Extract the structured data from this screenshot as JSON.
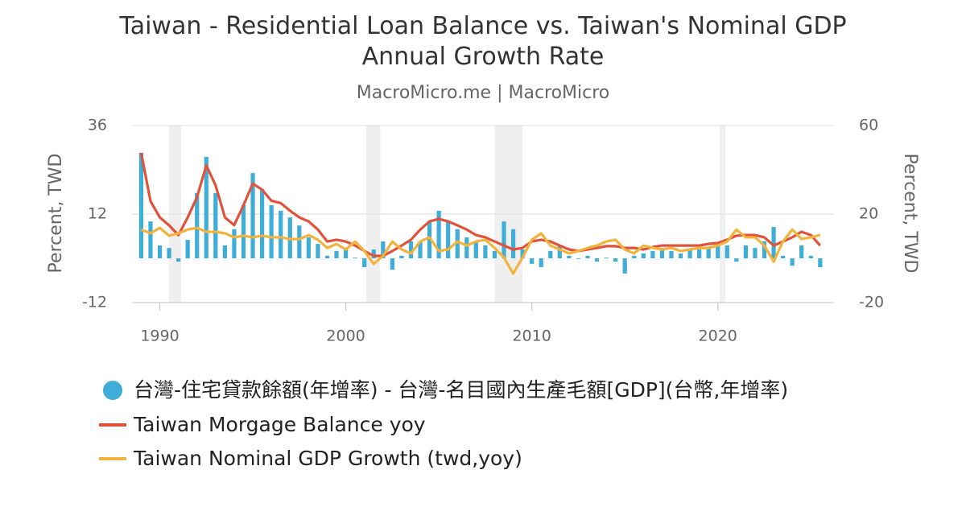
{
  "chart_data": {
    "type": "bar_line",
    "title": "Taiwan - Residential Loan Balance vs. Taiwan's Nominal GDP Annual Growth Rate",
    "subtitle": "MacroMicro.me | MacroMicro",
    "ylabel": "Percent, TWD",
    "y2label": "Percent, TWD",
    "xlim": [
      1988.55,
      2026.2
    ],
    "xticks": [
      1990,
      2000,
      2010,
      2020
    ],
    "ylim": [
      -12,
      36
    ],
    "yticks": [
      -12,
      12,
      36
    ],
    "y2lim": [
      -20,
      60
    ],
    "y2ticks": [
      -20,
      20,
      60
    ],
    "grid": true,
    "shaded_periods": [
      [
        1990.5,
        1991.15
      ],
      [
        2001.1,
        2001.85
      ],
      [
        2008.0,
        2009.5
      ],
      [
        2020.1,
        2020.4
      ]
    ],
    "x": [
      1989,
      1989.5,
      1990,
      1990.5,
      1991,
      1991.5,
      1992,
      1992.5,
      1993,
      1993.5,
      1994,
      1994.5,
      1995,
      1995.5,
      1996,
      1996.5,
      1997,
      1997.5,
      1998,
      1998.5,
      1999,
      1999.5,
      2000,
      2000.5,
      2001,
      2001.5,
      2002,
      2002.5,
      2003,
      2003.5,
      2004,
      2004.5,
      2005,
      2005.5,
      2006,
      2006.5,
      2007,
      2007.5,
      2008,
      2008.5,
      2009,
      2009.5,
      2010,
      2010.5,
      2011,
      2011.5,
      2012,
      2012.5,
      2013,
      2013.5,
      2014,
      2014.5,
      2015,
      2015.5,
      2016,
      2016.5,
      2017,
      2017.5,
      2018,
      2018.5,
      2019,
      2019.5,
      2020,
      2020.5,
      2021,
      2021.5,
      2022,
      2022.5,
      2023,
      2023.5,
      2024,
      2024.5,
      2025,
      2025.5
    ],
    "series": [
      {
        "name": "台灣-住宅貸款餘額(年增率) - 台灣-名目國內生產毛額[GDP](台幣,年增率)",
        "kind": "bar",
        "axis": "y",
        "color": "#3eadd8",
        "values": [
          28.6,
          10,
          3.5,
          2.8,
          -0.9,
          5,
          17.7,
          27.5,
          17.7,
          3.5,
          7.9,
          14.4,
          23.1,
          18.8,
          14.4,
          12.9,
          11.1,
          8.9,
          5.7,
          3.9,
          0.7,
          2,
          2.4,
          0.2,
          -2.4,
          2.4,
          4.6,
          -3.1,
          0.7,
          4.6,
          4.6,
          10,
          12.9,
          10,
          7.9,
          5.7,
          4.6,
          3.5,
          2,
          10,
          7.9,
          2.4,
          -1.5,
          -2.4,
          2,
          3.5,
          0.7,
          -0.2,
          0.7,
          -0.9,
          0.2,
          -0.9,
          -4.1,
          0.7,
          1.3,
          2,
          2.8,
          2,
          1.3,
          2.4,
          2.4,
          2.8,
          3.5,
          3.5,
          -0.9,
          3.5,
          2.8,
          4.6,
          8.5,
          0.7,
          -2,
          3.5,
          0.7,
          -2.4
        ]
      },
      {
        "name": "Taiwan Morgage Balance yoy",
        "kind": "line",
        "axis": "y2",
        "color": "#e0533a",
        "values": [
          47.6,
          25.8,
          18.5,
          14.9,
          10.5,
          18.5,
          27.6,
          42,
          33,
          18.5,
          15,
          24,
          33.8,
          31,
          26,
          25,
          21.5,
          18.5,
          16.7,
          13,
          7.6,
          8.4,
          7.6,
          5.8,
          3.3,
          1.1,
          1.1,
          3.3,
          5.8,
          8.4,
          13,
          16.7,
          17.8,
          16.7,
          14.9,
          13,
          10.5,
          9.5,
          7.6,
          5.8,
          4,
          4.7,
          7.6,
          8.4,
          7.6,
          5.8,
          4,
          3.3,
          4,
          4.7,
          5.5,
          5.5,
          4.7,
          4.7,
          4,
          5.1,
          5.8,
          5.8,
          5.8,
          5.8,
          5.8,
          6.5,
          6.9,
          8.4,
          10.2,
          10.5,
          10.5,
          9.5,
          5.8,
          7.6,
          9.5,
          12,
          10.5,
          5.8
        ]
      },
      {
        "name": "Taiwan Nominal GDP Growth (twd,yoy)",
        "kind": "line",
        "axis": "y2",
        "color": "#f2b33d",
        "values": [
          13,
          11.3,
          13.8,
          10.2,
          11.3,
          13,
          13.8,
          12,
          12,
          11.3,
          9.5,
          10.2,
          9.5,
          10.2,
          9.5,
          9.5,
          8.7,
          8.7,
          10.5,
          8.4,
          4.7,
          6.5,
          4,
          7.6,
          3.3,
          -2.5,
          1.1,
          7.6,
          4,
          2.2,
          7.6,
          9.5,
          3.3,
          4,
          7.6,
          5.8,
          7.6,
          8.4,
          4.7,
          0.4,
          -6.9,
          0.4,
          8.4,
          11.3,
          5.8,
          4,
          2.2,
          3.3,
          4.7,
          5.8,
          7.6,
          8.4,
          4,
          2.2,
          5.8,
          4.7,
          4,
          4.7,
          3.3,
          4,
          4.7,
          4.7,
          5.8,
          7.6,
          13,
          9.5,
          9.5,
          5.8,
          -1.5,
          7.6,
          13,
          8.7,
          9.5,
          10.5
        ]
      }
    ]
  }
}
